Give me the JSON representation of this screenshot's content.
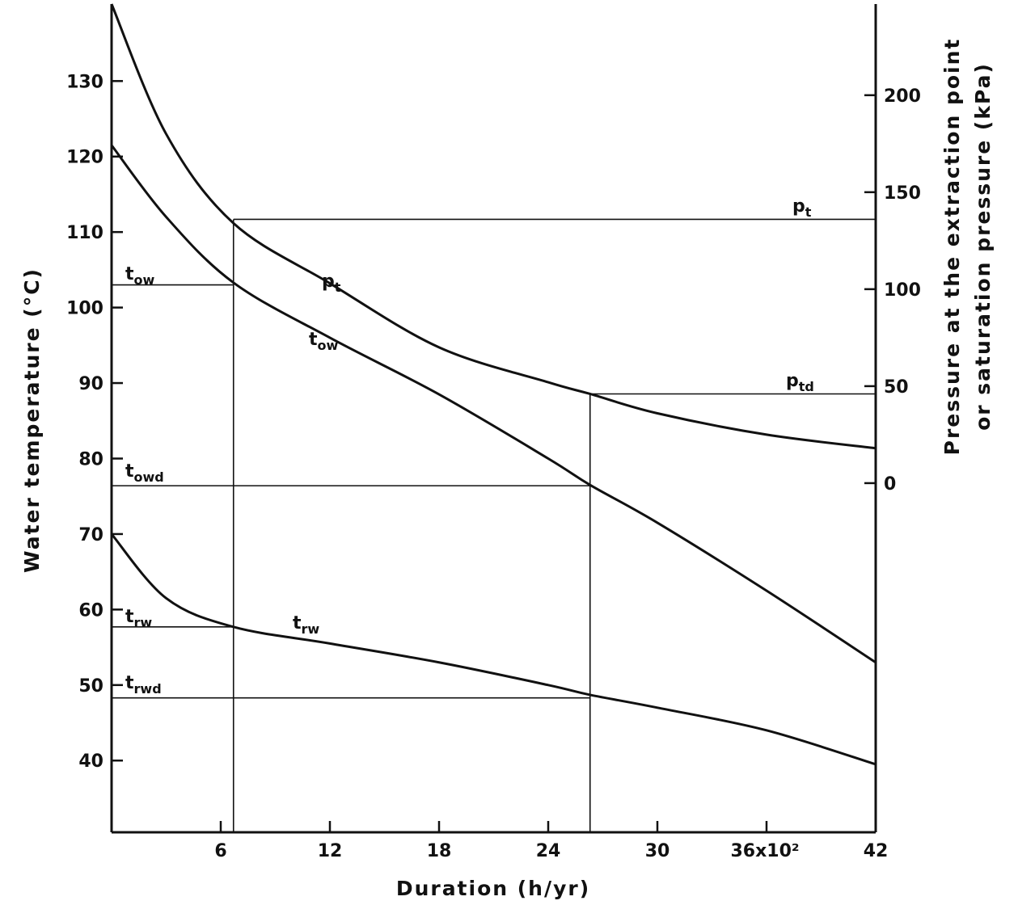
{
  "chart_data": {
    "type": "line",
    "xlabel": "Duration (h/yr)",
    "ylabel": "Water temperature (°C)",
    "y2label_line1": "Pressure at the extraction point",
    "y2label_line2": "or saturation pressure (kPa)",
    "xlim": [
      0,
      42
    ],
    "ylim": [
      30.5,
      140.2
    ],
    "y2lim": [
      -180,
      247
    ],
    "x_ticks": [
      6,
      12,
      18,
      24,
      30,
      36,
      42
    ],
    "x_tick_labels": [
      "6",
      "12",
      "18",
      "24",
      "30",
      "36x10²",
      "42"
    ],
    "y_ticks": [
      40,
      50,
      60,
      70,
      80,
      90,
      100,
      110,
      120,
      130
    ],
    "y2_ticks": [
      0,
      50,
      100,
      150,
      200
    ],
    "grid": false,
    "series": [
      {
        "name": "pt",
        "axis": "right",
        "x": [
          0,
          3,
          6.7,
          12,
          18,
          24,
          26.3,
          30,
          36,
          42
        ],
        "y": [
          247,
          180,
          134,
          103,
          70,
          52,
          46,
          36,
          25,
          18
        ]
      },
      {
        "name": "tow",
        "axis": "left",
        "x": [
          0,
          3,
          6.7,
          12,
          18,
          24,
          26.3,
          30,
          36,
          42
        ],
        "y": [
          121.5,
          112,
          103.3,
          96,
          88.5,
          80,
          76.5,
          71.5,
          62.5,
          53
        ]
      },
      {
        "name": "trw",
        "axis": "left",
        "x": [
          0,
          3,
          6.7,
          12,
          18,
          24,
          26.3,
          30,
          36,
          42
        ],
        "y": [
          70,
          61.5,
          57.7,
          55.5,
          53,
          50,
          48.7,
          47,
          44,
          39.5
        ]
      }
    ],
    "reference_lines": {
      "pt_design_kPa": 136,
      "ptd_kPa": 46,
      "tow_design_C": 103,
      "towd_C": 76.4,
      "trw_design_C": 57.7,
      "trwd_C": 48.3,
      "duration_design": 6.7,
      "duration_d": 26.3
    },
    "annotations": [
      {
        "main": "p",
        "sub": "t"
      },
      {
        "main": "p",
        "sub": "td"
      },
      {
        "main": "p",
        "sub": "t"
      },
      {
        "main": "t",
        "sub": "ow"
      },
      {
        "main": "t",
        "sub": "ow"
      },
      {
        "main": "t",
        "sub": "owd"
      },
      {
        "main": "t",
        "sub": "rw"
      },
      {
        "main": "t",
        "sub": "rw"
      },
      {
        "main": "t",
        "sub": "rwd"
      }
    ]
  }
}
